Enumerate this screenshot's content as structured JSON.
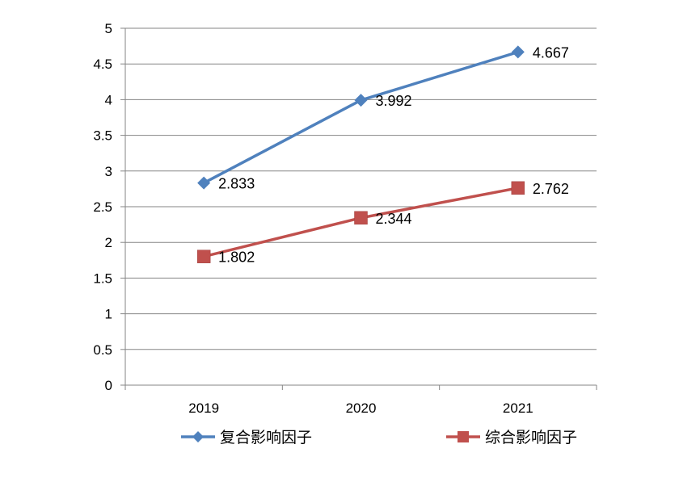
{
  "chart_data": {
    "type": "line",
    "title": "",
    "xlabel": "",
    "ylabel": "",
    "categories": [
      "2019",
      "2020",
      "2021"
    ],
    "ylim": [
      0,
      5
    ],
    "yticks": [
      0,
      0.5,
      1,
      1.5,
      2,
      2.5,
      3,
      3.5,
      4,
      4.5,
      5
    ],
    "ytick_labels": [
      "0",
      "0.5",
      "1",
      "1.5",
      "2",
      "2.5",
      "3",
      "3.5",
      "4",
      "4.5",
      "5"
    ],
    "grid": true,
    "legend_position": "bottom",
    "series": [
      {
        "name": "复合影响因子",
        "values": [
          2.833,
          3.992,
          4.667
        ],
        "labels": [
          "2.833",
          "3.992",
          "4.667"
        ],
        "color": "#4F81BD",
        "marker": "diamond"
      },
      {
        "name": "综合影响因子",
        "values": [
          1.802,
          2.344,
          2.762
        ],
        "labels": [
          "1.802",
          "2.344",
          "2.762"
        ],
        "color": "#C0504D",
        "marker": "square"
      }
    ]
  }
}
